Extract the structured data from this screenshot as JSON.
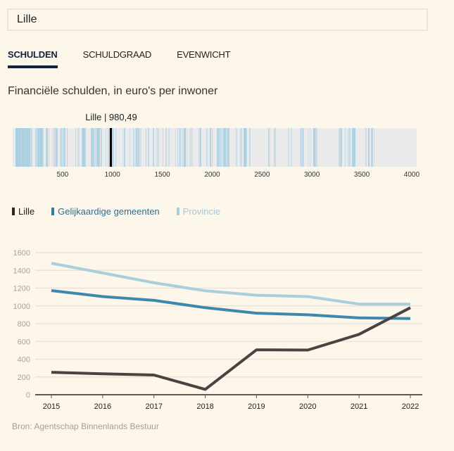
{
  "search": {
    "value": "Lille",
    "placeholder": ""
  },
  "tabs": [
    {
      "label": "SCHULDEN",
      "active": true
    },
    {
      "label": "SCHULDGRAAD",
      "active": false
    },
    {
      "label": "EVENWICHT",
      "active": false
    }
  ],
  "subtitle": "Financiële schulden, in euro's per inwoner",
  "distribution": {
    "marker_label": "Lille | 980,49",
    "marker_value": 980.49,
    "axis_ticks": [
      500,
      1000,
      1500,
      2000,
      2500,
      3000,
      3500,
      4000
    ],
    "range": [
      0,
      4050
    ],
    "colors": {
      "background": "#ebebeb",
      "stripe": "#a9cfe2",
      "marker": "#000000"
    }
  },
  "source": "Bron: Agentschap Binnenlands Bestuur",
  "chart_data": {
    "type": "line",
    "title": "Financiële schulden, in euro's per inwoner",
    "xlabel": "",
    "ylabel": "",
    "x": [
      "2015",
      "2016",
      "2017",
      "2018",
      "2019",
      "2020",
      "2021",
      "2022"
    ],
    "ylim": [
      0,
      1600
    ],
    "yticks": [
      0,
      200,
      400,
      600,
      800,
      1000,
      1200,
      1400,
      1600
    ],
    "grid": true,
    "legend_position": "top-left",
    "series": [
      {
        "name": "Lille",
        "color": "#4a4341",
        "values": [
          253,
          235,
          222,
          60,
          505,
          503,
          680,
          980
        ]
      },
      {
        "name": "Gelijkaardige gemeenten",
        "color": "#3d88ad",
        "values": [
          1172,
          1105,
          1062,
          980,
          918,
          900,
          865,
          858
        ]
      },
      {
        "name": "Provincie",
        "color": "#a9cfdd",
        "values": [
          1480,
          1370,
          1260,
          1170,
          1120,
          1105,
          1020,
          1020
        ]
      }
    ]
  }
}
